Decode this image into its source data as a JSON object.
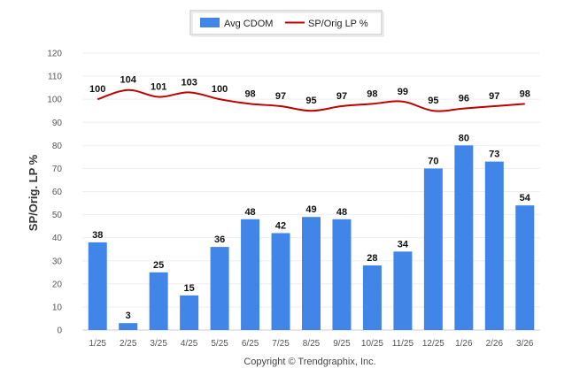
{
  "chart_data": {
    "type": "bar",
    "categories": [
      "1/25",
      "2/25",
      "3/25",
      "4/25",
      "5/25",
      "6/25",
      "7/25",
      "8/25",
      "9/25",
      "10/25",
      "11/25",
      "12/25",
      "1/26",
      "2/26",
      "3/26"
    ],
    "series": [
      {
        "name": "Avg CDOM",
        "kind": "bar",
        "color": "#4285e9",
        "values": [
          38,
          3,
          25,
          15,
          36,
          48,
          42,
          49,
          48,
          28,
          34,
          70,
          80,
          73,
          54
        ]
      },
      {
        "name": "SP/Orig LP %",
        "kind": "line",
        "color": "#c00000",
        "values": [
          100,
          104,
          101,
          103,
          100,
          98,
          97,
          95,
          97,
          98,
          99,
          95,
          96,
          97,
          98
        ]
      }
    ],
    "title": "",
    "xlabel": "",
    "ylabel": "SP/Orig. LP %",
    "ylim": [
      0,
      120
    ],
    "yticks": [
      0,
      10,
      20,
      30,
      40,
      50,
      60,
      70,
      80,
      90,
      100,
      110,
      120
    ],
    "grid": true,
    "legend_position": "top-center",
    "footer": "Copyright © Trendgraphix, Inc."
  }
}
